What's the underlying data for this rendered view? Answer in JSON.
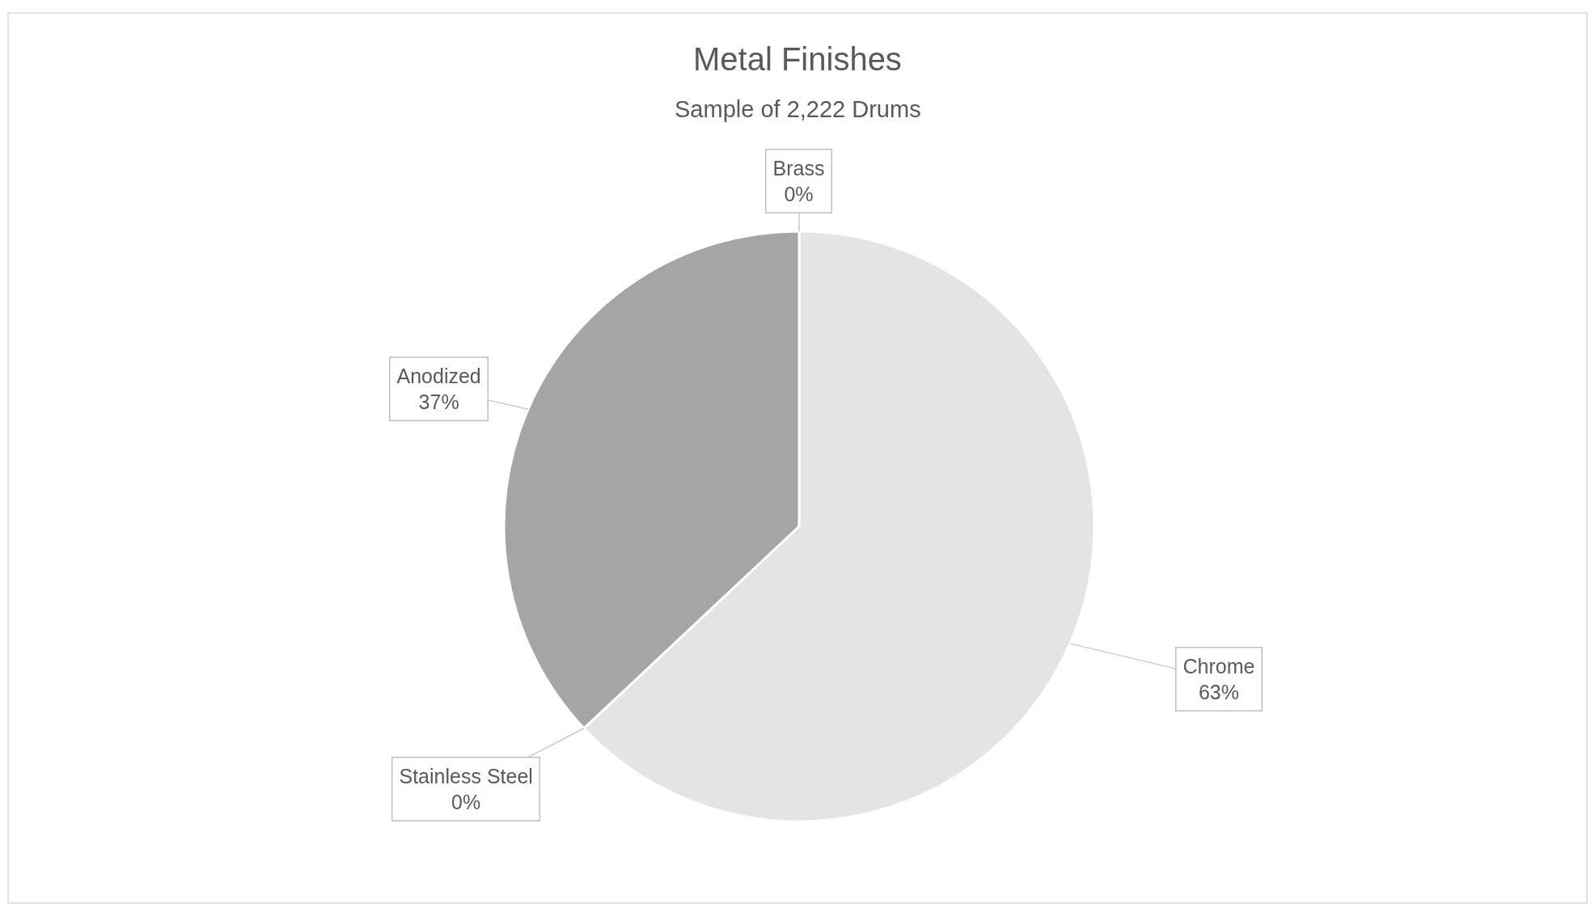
{
  "chart_data": {
    "type": "pie",
    "title": "Metal Finishes",
    "subtitle": "Sample of 2,222 Drums",
    "categories": [
      "Chrome",
      "Stainless Steel",
      "Anodized",
      "Brass"
    ],
    "values": [
      63,
      0,
      37,
      0
    ],
    "value_labels": [
      "63%",
      "0%",
      "37%",
      "0%"
    ],
    "colors": [
      "#e4e4e4",
      "#7f7f7f",
      "#a5a5a5",
      "#d0d0d0"
    ],
    "legend": false
  }
}
